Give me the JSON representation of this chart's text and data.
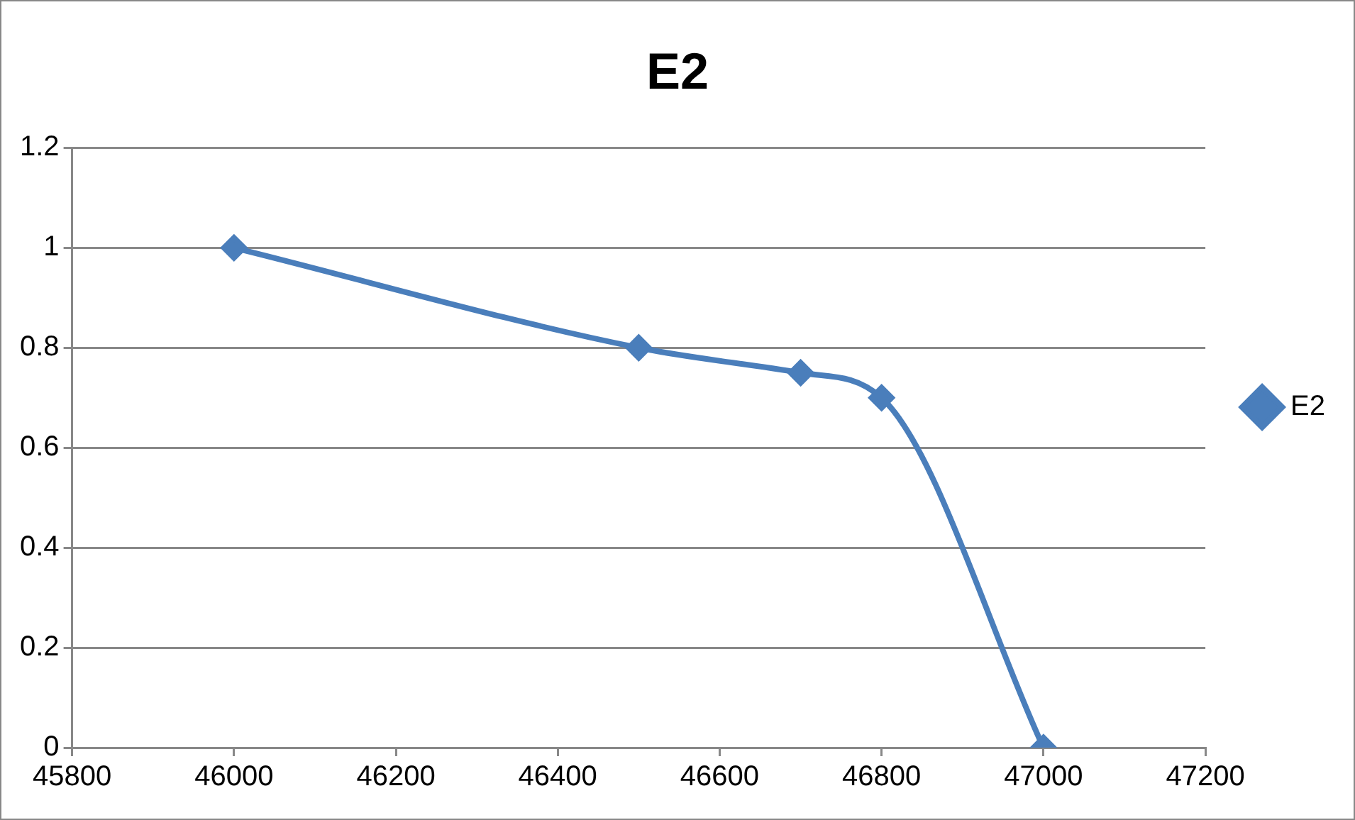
{
  "chart_data": {
    "type": "line",
    "title": "E2",
    "x": [
      46000,
      46500,
      46700,
      46800,
      47000
    ],
    "series": [
      {
        "name": "E2",
        "color": "#4a7ebb",
        "values": [
          1,
          0.8,
          0.75,
          0.7,
          0
        ]
      }
    ],
    "xlim": [
      45800,
      47200
    ],
    "xticks": [
      45800,
      46000,
      46200,
      46400,
      46600,
      46800,
      47000,
      47200
    ],
    "ylim": [
      0,
      1.2
    ],
    "yticks": [
      0,
      0.2,
      0.4,
      0.6,
      0.8,
      1,
      1.2
    ],
    "grid": "y",
    "legend": "right",
    "marker": "diamond"
  }
}
